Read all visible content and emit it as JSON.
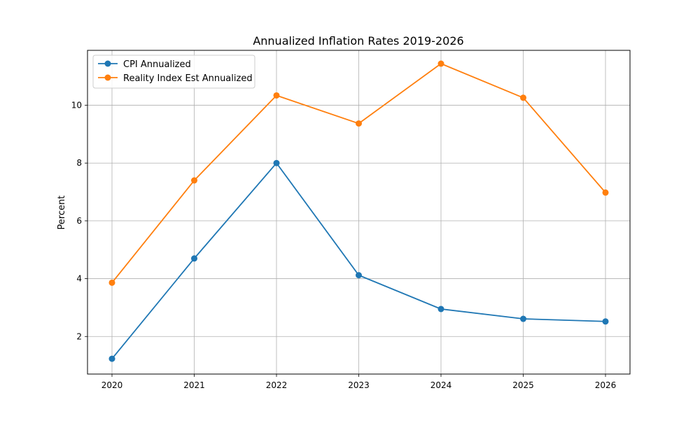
{
  "chart_data": {
    "type": "line",
    "title": "Annualized Inflation Rates 2019-2026",
    "xlabel": "",
    "ylabel": "Percent",
    "x": [
      "2020",
      "2021",
      "2022",
      "2023",
      "2024",
      "2025",
      "2026"
    ],
    "yticks": [
      "2",
      "4",
      "6",
      "8",
      "10"
    ],
    "ylim": [
      0.7,
      11.9
    ],
    "grid": true,
    "legend_position": "upper-left",
    "series": [
      {
        "name": "CPI Annualized",
        "color": "#1f77b4",
        "marker": "circle",
        "values": [
          1.23,
          4.7,
          8.0,
          4.12,
          2.95,
          2.61,
          2.52
        ]
      },
      {
        "name": "Reality Index Est Annualized",
        "color": "#ff7f0e",
        "marker": "circle",
        "values": [
          3.86,
          7.4,
          10.34,
          9.37,
          11.44,
          10.26,
          6.98
        ]
      }
    ]
  }
}
